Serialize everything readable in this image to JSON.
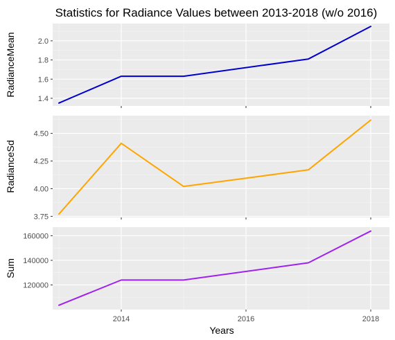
{
  "chart_data": {
    "type": "line",
    "title": "Statistics for Radiance Values between 2013-2018 (w/o 2016)",
    "xlabel": "Years",
    "x": [
      2013,
      2014,
      2015,
      2017,
      2018
    ],
    "xlim": [
      2012.9,
      2018.3
    ],
    "x_ticks": [
      2014,
      2016,
      2018
    ],
    "x_tick_labels": [
      "2014",
      "2016",
      "2018"
    ],
    "grid": true,
    "panels": [
      {
        "name": "radiance-mean",
        "ylabel": "RadianceMean",
        "color": "#0000cd",
        "values": [
          1.35,
          1.63,
          1.63,
          1.81,
          2.15
        ],
        "ylim": [
          1.32,
          2.18
        ],
        "y_ticks": [
          1.4,
          1.6,
          1.8,
          2.0
        ],
        "y_tick_labels": [
          "1.4",
          "1.6",
          "1.8",
          "2.0"
        ]
      },
      {
        "name": "radiance-sd",
        "ylabel": "RadianceSd",
        "color": "#ffa500",
        "values": [
          3.77,
          4.41,
          4.02,
          4.17,
          4.62
        ],
        "ylim": [
          3.74,
          4.66
        ],
        "y_ticks": [
          3.75,
          4.0,
          4.25,
          4.5
        ],
        "y_tick_labels": [
          "3.75",
          "4.00",
          "4.25",
          "4.50"
        ]
      },
      {
        "name": "sum",
        "ylabel": "Sum",
        "color": "#a020f0",
        "values": [
          103500,
          124000,
          124000,
          138000,
          163800
        ],
        "ylim": [
          100000,
          167000
        ],
        "y_ticks": [
          120000,
          140000,
          160000
        ],
        "y_tick_labels": [
          "120000",
          "140000",
          "160000"
        ]
      }
    ]
  }
}
